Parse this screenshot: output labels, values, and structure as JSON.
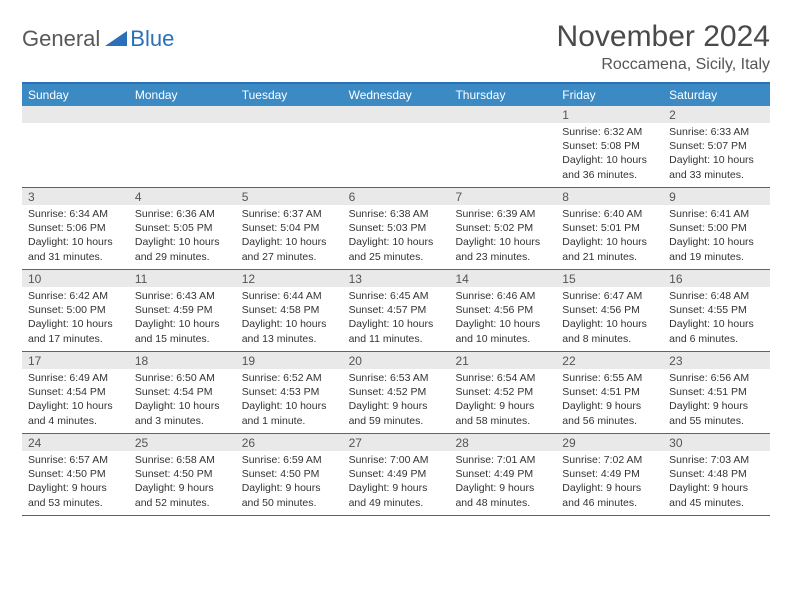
{
  "brand": {
    "part1": "General",
    "part2": "Blue"
  },
  "title": "November 2024",
  "location": "Roccamena, Sicily, Italy",
  "colors": {
    "header_bg": "#3b8ac4",
    "accent": "#2a70b8",
    "daynum_bg": "#e9e9e9",
    "text": "#333333",
    "muted": "#555555"
  },
  "day_names": [
    "Sunday",
    "Monday",
    "Tuesday",
    "Wednesday",
    "Thursday",
    "Friday",
    "Saturday"
  ],
  "weeks": [
    [
      {
        "n": "",
        "sunrise": "",
        "sunset": "",
        "daylight": ""
      },
      {
        "n": "",
        "sunrise": "",
        "sunset": "",
        "daylight": ""
      },
      {
        "n": "",
        "sunrise": "",
        "sunset": "",
        "daylight": ""
      },
      {
        "n": "",
        "sunrise": "",
        "sunset": "",
        "daylight": ""
      },
      {
        "n": "",
        "sunrise": "",
        "sunset": "",
        "daylight": ""
      },
      {
        "n": "1",
        "sunrise": "Sunrise: 6:32 AM",
        "sunset": "Sunset: 5:08 PM",
        "daylight": "Daylight: 10 hours and 36 minutes."
      },
      {
        "n": "2",
        "sunrise": "Sunrise: 6:33 AM",
        "sunset": "Sunset: 5:07 PM",
        "daylight": "Daylight: 10 hours and 33 minutes."
      }
    ],
    [
      {
        "n": "3",
        "sunrise": "Sunrise: 6:34 AM",
        "sunset": "Sunset: 5:06 PM",
        "daylight": "Daylight: 10 hours and 31 minutes."
      },
      {
        "n": "4",
        "sunrise": "Sunrise: 6:36 AM",
        "sunset": "Sunset: 5:05 PM",
        "daylight": "Daylight: 10 hours and 29 minutes."
      },
      {
        "n": "5",
        "sunrise": "Sunrise: 6:37 AM",
        "sunset": "Sunset: 5:04 PM",
        "daylight": "Daylight: 10 hours and 27 minutes."
      },
      {
        "n": "6",
        "sunrise": "Sunrise: 6:38 AM",
        "sunset": "Sunset: 5:03 PM",
        "daylight": "Daylight: 10 hours and 25 minutes."
      },
      {
        "n": "7",
        "sunrise": "Sunrise: 6:39 AM",
        "sunset": "Sunset: 5:02 PM",
        "daylight": "Daylight: 10 hours and 23 minutes."
      },
      {
        "n": "8",
        "sunrise": "Sunrise: 6:40 AM",
        "sunset": "Sunset: 5:01 PM",
        "daylight": "Daylight: 10 hours and 21 minutes."
      },
      {
        "n": "9",
        "sunrise": "Sunrise: 6:41 AM",
        "sunset": "Sunset: 5:00 PM",
        "daylight": "Daylight: 10 hours and 19 minutes."
      }
    ],
    [
      {
        "n": "10",
        "sunrise": "Sunrise: 6:42 AM",
        "sunset": "Sunset: 5:00 PM",
        "daylight": "Daylight: 10 hours and 17 minutes."
      },
      {
        "n": "11",
        "sunrise": "Sunrise: 6:43 AM",
        "sunset": "Sunset: 4:59 PM",
        "daylight": "Daylight: 10 hours and 15 minutes."
      },
      {
        "n": "12",
        "sunrise": "Sunrise: 6:44 AM",
        "sunset": "Sunset: 4:58 PM",
        "daylight": "Daylight: 10 hours and 13 minutes."
      },
      {
        "n": "13",
        "sunrise": "Sunrise: 6:45 AM",
        "sunset": "Sunset: 4:57 PM",
        "daylight": "Daylight: 10 hours and 11 minutes."
      },
      {
        "n": "14",
        "sunrise": "Sunrise: 6:46 AM",
        "sunset": "Sunset: 4:56 PM",
        "daylight": "Daylight: 10 hours and 10 minutes."
      },
      {
        "n": "15",
        "sunrise": "Sunrise: 6:47 AM",
        "sunset": "Sunset: 4:56 PM",
        "daylight": "Daylight: 10 hours and 8 minutes."
      },
      {
        "n": "16",
        "sunrise": "Sunrise: 6:48 AM",
        "sunset": "Sunset: 4:55 PM",
        "daylight": "Daylight: 10 hours and 6 minutes."
      }
    ],
    [
      {
        "n": "17",
        "sunrise": "Sunrise: 6:49 AM",
        "sunset": "Sunset: 4:54 PM",
        "daylight": "Daylight: 10 hours and 4 minutes."
      },
      {
        "n": "18",
        "sunrise": "Sunrise: 6:50 AM",
        "sunset": "Sunset: 4:54 PM",
        "daylight": "Daylight: 10 hours and 3 minutes."
      },
      {
        "n": "19",
        "sunrise": "Sunrise: 6:52 AM",
        "sunset": "Sunset: 4:53 PM",
        "daylight": "Daylight: 10 hours and 1 minute."
      },
      {
        "n": "20",
        "sunrise": "Sunrise: 6:53 AM",
        "sunset": "Sunset: 4:52 PM",
        "daylight": "Daylight: 9 hours and 59 minutes."
      },
      {
        "n": "21",
        "sunrise": "Sunrise: 6:54 AM",
        "sunset": "Sunset: 4:52 PM",
        "daylight": "Daylight: 9 hours and 58 minutes."
      },
      {
        "n": "22",
        "sunrise": "Sunrise: 6:55 AM",
        "sunset": "Sunset: 4:51 PM",
        "daylight": "Daylight: 9 hours and 56 minutes."
      },
      {
        "n": "23",
        "sunrise": "Sunrise: 6:56 AM",
        "sunset": "Sunset: 4:51 PM",
        "daylight": "Daylight: 9 hours and 55 minutes."
      }
    ],
    [
      {
        "n": "24",
        "sunrise": "Sunrise: 6:57 AM",
        "sunset": "Sunset: 4:50 PM",
        "daylight": "Daylight: 9 hours and 53 minutes."
      },
      {
        "n": "25",
        "sunrise": "Sunrise: 6:58 AM",
        "sunset": "Sunset: 4:50 PM",
        "daylight": "Daylight: 9 hours and 52 minutes."
      },
      {
        "n": "26",
        "sunrise": "Sunrise: 6:59 AM",
        "sunset": "Sunset: 4:50 PM",
        "daylight": "Daylight: 9 hours and 50 minutes."
      },
      {
        "n": "27",
        "sunrise": "Sunrise: 7:00 AM",
        "sunset": "Sunset: 4:49 PM",
        "daylight": "Daylight: 9 hours and 49 minutes."
      },
      {
        "n": "28",
        "sunrise": "Sunrise: 7:01 AM",
        "sunset": "Sunset: 4:49 PM",
        "daylight": "Daylight: 9 hours and 48 minutes."
      },
      {
        "n": "29",
        "sunrise": "Sunrise: 7:02 AM",
        "sunset": "Sunset: 4:49 PM",
        "daylight": "Daylight: 9 hours and 46 minutes."
      },
      {
        "n": "30",
        "sunrise": "Sunrise: 7:03 AM",
        "sunset": "Sunset: 4:48 PM",
        "daylight": "Daylight: 9 hours and 45 minutes."
      }
    ]
  ]
}
